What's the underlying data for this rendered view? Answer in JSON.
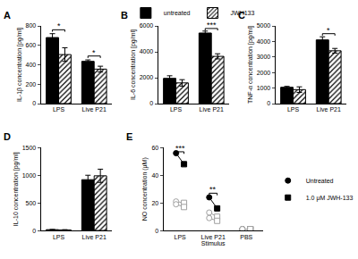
{
  "chart_data": [
    {
      "type": "bar",
      "title": "A",
      "y_label": "IL-1β concentration [pg/ml]",
      "categories": [
        "LPS",
        "Live P21"
      ],
      "series": [
        {
          "color": "#000000",
          "marker": "solid",
          "values": [
            680,
            435
          ],
          "errors": [
            40,
            15
          ]
        },
        {
          "color": "#000000",
          "marker": "hatched",
          "values": [
            505,
            355
          ],
          "errors": [
            70,
            30
          ]
        }
      ],
      "ylim": [
        0,
        800
      ],
      "yticks": [
        0,
        200,
        400,
        600,
        800
      ],
      "significance": [
        {
          "category": "LPS",
          "y": 760,
          "text": "*"
        },
        {
          "category": "Live P21",
          "y": 490,
          "text": "*"
        }
      ]
    },
    {
      "type": "bar",
      "title": "B",
      "y_label": "IL-6 concentration [pg/ml]",
      "categories": [
        "LPS",
        "Live P21"
      ],
      "legend": "top",
      "series": [
        {
          "name": "untreated",
          "color": "#000000",
          "marker": "solid",
          "values": [
            1950,
            5450
          ],
          "errors": [
            200,
            150
          ]
        },
        {
          "name": "JWH133",
          "color": "#000000",
          "marker": "hatched",
          "values": [
            1600,
            3650
          ],
          "errors": [
            250,
            200
          ]
        }
      ],
      "ylim": [
        0,
        6000
      ],
      "yticks": [
        0,
        2000,
        4000,
        6000
      ],
      "significance": [
        {
          "category": "Live P21",
          "y": 5800,
          "text": "***"
        }
      ]
    },
    {
      "type": "bar",
      "title": "C",
      "y_label": "TNF-α concentration [pg/ml]",
      "categories": [
        "LPS",
        "Live P21"
      ],
      "series": [
        {
          "color": "#000000",
          "marker": "solid",
          "values": [
            1050,
            4100
          ],
          "errors": [
            60,
            200
          ]
        },
        {
          "color": "#000000",
          "marker": "hatched",
          "values": [
            900,
            3400
          ],
          "errors": [
            180,
            150
          ]
        }
      ],
      "ylim": [
        0,
        5000
      ],
      "yticks": [
        0,
        1000,
        2000,
        3000,
        4000,
        5000
      ],
      "significance": [
        {
          "category": "Live P21",
          "y": 4500,
          "text": "*"
        }
      ]
    },
    {
      "type": "bar",
      "title": "D",
      "y_label": "IL-10 concentration [pg/ml]",
      "categories": [
        "LPS",
        "Live P21"
      ],
      "series": [
        {
          "color": "#000000",
          "marker": "solid",
          "values": [
            15,
            920
          ],
          "errors": [
            5,
            80
          ]
        },
        {
          "color": "#000000",
          "marker": "hatched",
          "values": [
            10,
            990
          ],
          "errors": [
            5,
            120
          ]
        }
      ],
      "ylim": [
        0,
        1500
      ],
      "yticks": [
        0,
        500,
        1000,
        1500
      ]
    },
    {
      "type": "scatter",
      "title": "E",
      "x_label": "Stimulus",
      "y_label": "NO concentration (μM)",
      "categories": [
        "LPS",
        "Live P21",
        "PBS"
      ],
      "legend": "right",
      "colors": [
        "#000000",
        "#a0a0a0",
        "#a0a0a0"
      ],
      "series": [
        {
          "name": "Untreated",
          "marker": "circle",
          "values": [
            [
              56,
              21,
              19
            ],
            [
              24,
              13,
              9
            ],
            [
              1,
              1,
              1
            ]
          ]
        },
        {
          "name": "1.0 μM JWH-133",
          "marker": "square",
          "values": [
            [
              48,
              20,
              17
            ],
            [
              16,
              10,
              7
            ],
            [
              1,
              1,
              1
            ]
          ]
        }
      ],
      "ylim": [
        0,
        60
      ],
      "yticks": [
        0,
        20,
        40,
        60
      ],
      "significance": [
        {
          "category": "LPS",
          "y": 57,
          "text": "***"
        },
        {
          "category": "Live P21",
          "y": 27,
          "text": "**"
        }
      ]
    }
  ]
}
